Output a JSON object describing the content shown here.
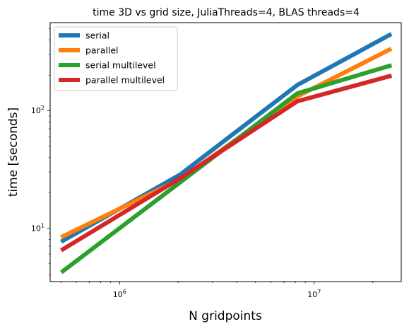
{
  "chart_data": {
    "type": "line",
    "title": "time 3D vs grid size, JuliaThreads=4, BLAS threads=4",
    "xlabel": "N gridpoints",
    "ylabel": "time [seconds]",
    "xscale": "log",
    "yscale": "log",
    "xlim": [
      440000,
      28000000
    ],
    "ylim": [
      3.5,
      560
    ],
    "grid": false,
    "legend_position": "top-left",
    "x_ticks": [
      {
        "value": 1000000,
        "base": "10",
        "exp": "6"
      },
      {
        "value": 10000000,
        "base": "10",
        "exp": "7"
      }
    ],
    "y_ticks": [
      {
        "value": 10,
        "base": "10",
        "exp": "1"
      },
      {
        "value": 100,
        "base": "10",
        "exp": "2"
      }
    ],
    "series": [
      {
        "name": "serial",
        "color": "#1f77b4",
        "x": [
          512000,
          2048000,
          8192000,
          24389000
        ],
        "y": [
          7.8,
          28.5,
          165,
          440
        ]
      },
      {
        "name": "parallel",
        "color": "#ff7f0e",
        "x": [
          512000,
          2048000,
          8192000,
          24389000
        ],
        "y": [
          8.5,
          26,
          132,
          330
        ]
      },
      {
        "name": "serial multilevel",
        "color": "#2ca02c",
        "x": [
          512000,
          2048000,
          8192000,
          24389000
        ],
        "y": [
          4.3,
          24.5,
          140,
          240
        ]
      },
      {
        "name": "parallel multilevel",
        "color": "#d62728",
        "x": [
          512000,
          2048000,
          8192000,
          24389000
        ],
        "y": [
          6.6,
          26.5,
          120,
          196
        ]
      }
    ]
  }
}
